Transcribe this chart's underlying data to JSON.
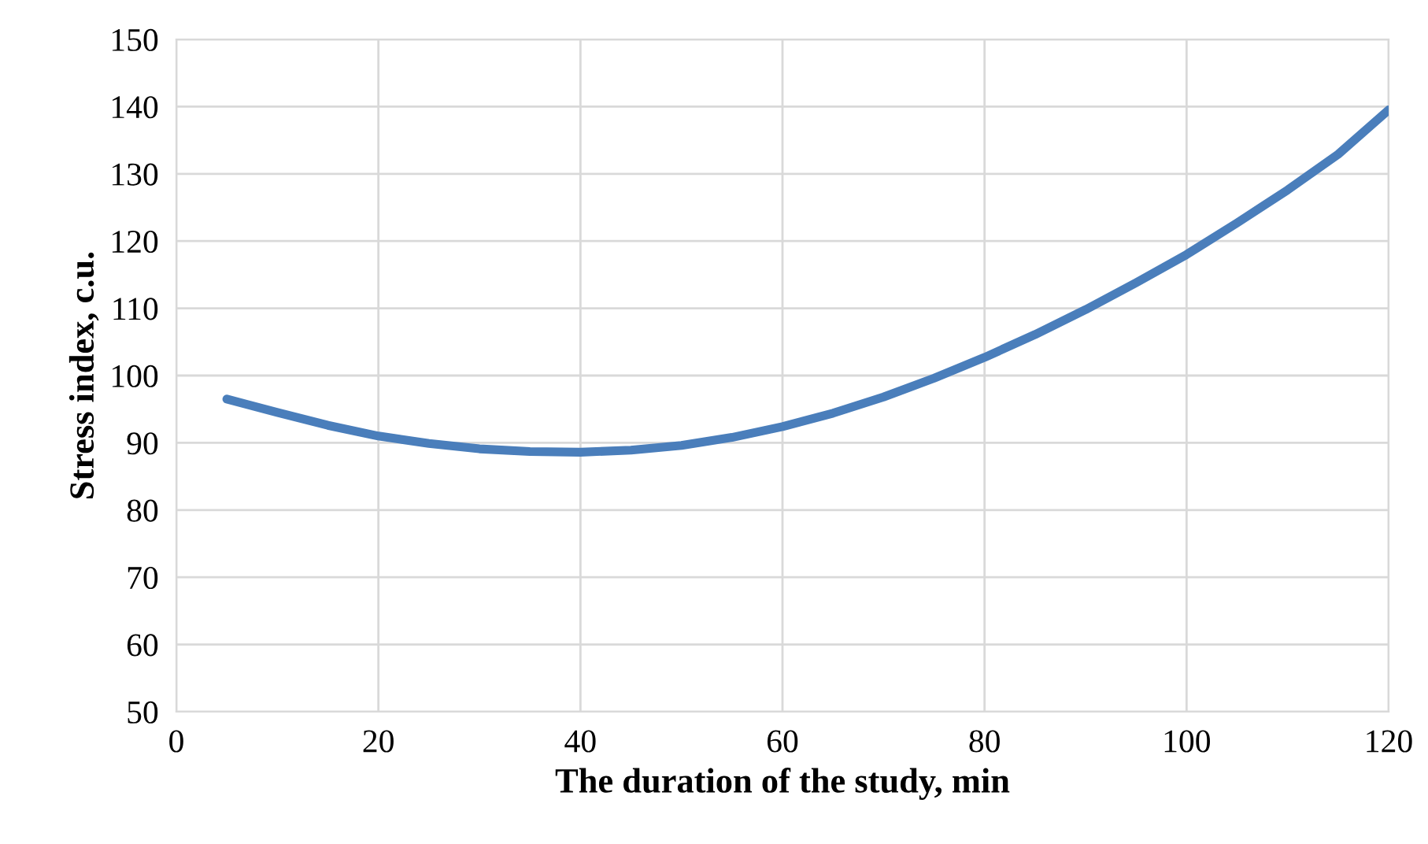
{
  "chart_data": {
    "type": "line",
    "xlabel": "The duration of the study, min",
    "ylabel": "Stress index, c.u.",
    "series": [
      {
        "color": "#4a7ebb",
        "x": [
          5,
          10,
          15,
          20,
          25,
          30,
          35,
          40,
          45,
          50,
          55,
          60,
          65,
          70,
          75,
          80,
          85,
          90,
          95,
          100,
          105,
          110,
          115,
          120
        ],
        "values": [
          96.5,
          94.5,
          92.6,
          91,
          89.9,
          89.1,
          88.7,
          88.6,
          88.9,
          89.6,
          90.8,
          92.4,
          94.4,
          96.8,
          99.6,
          102.7,
          106.1,
          109.8,
          113.8,
          118,
          122.7,
          127.6,
          132.9,
          139.5
        ]
      }
    ],
    "xlim": [
      0,
      120
    ],
    "xticks": [
      0,
      20,
      40,
      60,
      80,
      100,
      120
    ],
    "ylim": [
      50,
      150
    ],
    "yticks": [
      50,
      60,
      70,
      80,
      90,
      100,
      110,
      120,
      130,
      140,
      150
    ],
    "grid": true,
    "legend": false,
    "marker": "none",
    "line_style": "solid"
  }
}
